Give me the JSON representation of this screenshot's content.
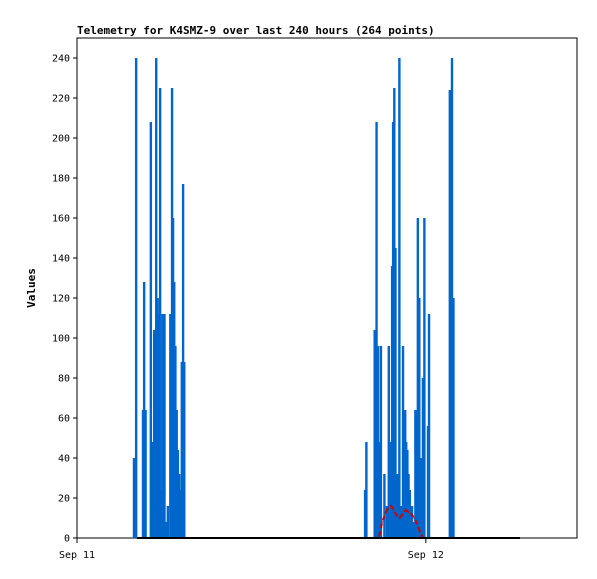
{
  "chart_data": {
    "type": "bar",
    "title": "Telemetry for K4SMZ-9 over last 240 hours (264 points)",
    "ylabel": "Values",
    "xlabel": "",
    "ylim": [
      0,
      250
    ],
    "y_ticks": [
      0,
      20,
      40,
      60,
      80,
      100,
      120,
      140,
      160,
      180,
      200,
      220,
      240
    ],
    "x_range_hours": [
      0,
      34.4
    ],
    "x_ticks": [
      {
        "hour": 0,
        "label": "Sep 11"
      },
      {
        "hour": 24,
        "label": "Sep 12"
      }
    ],
    "grid": false,
    "series": [
      {
        "color": "#0066cc",
        "style": "bars",
        "points": [
          [
            3.92,
            40
          ],
          [
            4.07,
            240
          ],
          [
            4.54,
            64
          ],
          [
            4.62,
            128
          ],
          [
            4.72,
            64
          ],
          [
            5.08,
            208
          ],
          [
            5.22,
            48
          ],
          [
            5.31,
            104
          ],
          [
            5.45,
            240
          ],
          [
            5.55,
            120
          ],
          [
            5.63,
            112
          ],
          [
            5.72,
            225
          ],
          [
            5.8,
            24
          ],
          [
            5.88,
            112
          ],
          [
            6.02,
            112
          ],
          [
            6.14,
            8
          ],
          [
            6.25,
            16
          ],
          [
            6.42,
            112
          ],
          [
            6.54,
            225
          ],
          [
            6.61,
            160
          ],
          [
            6.69,
            128
          ],
          [
            6.77,
            96
          ],
          [
            6.86,
            64
          ],
          [
            6.94,
            44
          ],
          [
            7.03,
            32
          ],
          [
            7.11,
            24
          ],
          [
            7.21,
            88
          ],
          [
            7.3,
            177
          ],
          [
            7.38,
            88
          ],
          [
            19.82,
            24
          ],
          [
            19.91,
            48
          ],
          [
            20.48,
            104
          ],
          [
            20.61,
            208
          ],
          [
            20.71,
            96
          ],
          [
            20.8,
            48
          ],
          [
            20.91,
            96
          ],
          [
            21.15,
            32
          ],
          [
            21.32,
            16
          ],
          [
            21.45,
            96
          ],
          [
            21.61,
            48
          ],
          [
            21.68,
            136
          ],
          [
            21.75,
            208
          ],
          [
            21.83,
            225
          ],
          [
            21.91,
            145
          ],
          [
            22.05,
            32
          ],
          [
            22.18,
            240
          ],
          [
            22.31,
            16
          ],
          [
            22.43,
            96
          ],
          [
            22.5,
            48
          ],
          [
            22.58,
            64
          ],
          [
            22.65,
            48
          ],
          [
            22.73,
            44
          ],
          [
            22.81,
            32
          ],
          [
            22.9,
            24
          ],
          [
            23.05,
            16
          ],
          [
            23.2,
            8
          ],
          [
            23.28,
            64
          ],
          [
            23.36,
            64
          ],
          [
            23.45,
            160
          ],
          [
            23.55,
            120
          ],
          [
            23.65,
            40
          ],
          [
            23.8,
            80
          ],
          [
            23.9,
            160
          ],
          [
            24.15,
            56
          ],
          [
            24.22,
            112
          ],
          [
            25.65,
            224
          ],
          [
            25.8,
            240
          ],
          [
            25.9,
            120
          ]
        ]
      },
      {
        "color": "#cc0000",
        "style": "dashed-line",
        "points": [
          [
            20.8,
            1
          ],
          [
            21.0,
            8
          ],
          [
            21.2,
            12
          ],
          [
            21.4,
            15
          ],
          [
            21.6,
            16
          ],
          [
            21.8,
            14
          ],
          [
            22.0,
            11
          ],
          [
            22.2,
            10
          ],
          [
            22.4,
            12
          ],
          [
            22.6,
            14
          ],
          [
            22.8,
            13
          ],
          [
            23.0,
            12
          ],
          [
            23.2,
            10
          ],
          [
            23.4,
            7
          ],
          [
            23.6,
            3
          ],
          [
            23.8,
            0
          ]
        ]
      }
    ]
  }
}
